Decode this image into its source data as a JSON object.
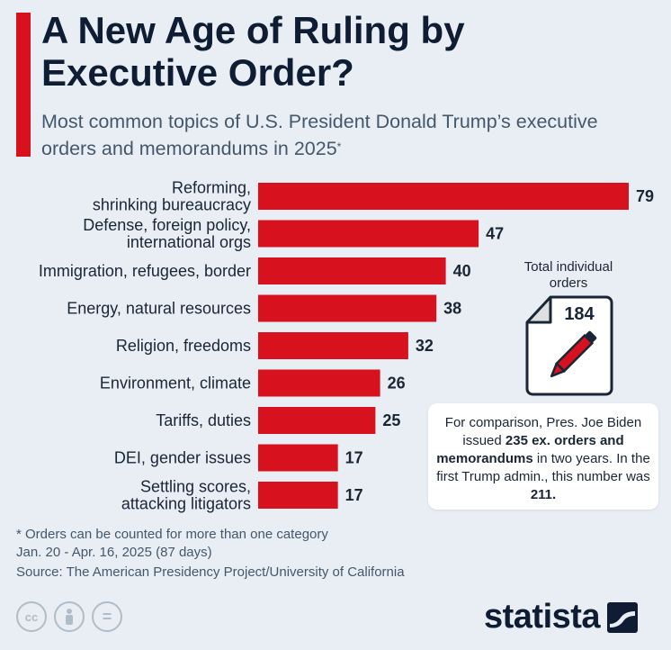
{
  "header": {
    "title": "A New Age of Ruling by Executive Order?",
    "subtitle": "Most common topics of U.S. President Donald Trump’s executive orders and memorandums in 2025",
    "subtitle_marker": "*"
  },
  "chart_data": {
    "type": "bar",
    "orientation": "horizontal",
    "categories": [
      [
        "Reforming,",
        "shrinking bureaucracy"
      ],
      [
        "Defense, foreign policy,",
        "international orgs"
      ],
      [
        "Immigration, refugees, border"
      ],
      [
        "Energy, natural resources"
      ],
      [
        "Religion, freedoms"
      ],
      [
        "Environment, climate"
      ],
      [
        "Tariffs, duties"
      ],
      [
        "DEI, gender issues"
      ],
      [
        "Settling scores,",
        "attacking litigators"
      ]
    ],
    "values": [
      79,
      47,
      40,
      38,
      32,
      26,
      25,
      17,
      17
    ],
    "xlim": [
      0,
      79
    ],
    "bar_color": "#d7111e",
    "grid": false,
    "value_labels": true
  },
  "callout": {
    "total_label": "Total individual orders",
    "total_value": "184",
    "comparison": {
      "part1": "For comparison, Pres. Joe Biden issued ",
      "bold1": "235 ex. orders and memorandums",
      "part2": " in two years. In the first Trump admin., this number was ",
      "bold2": "211.",
      "part3": ""
    }
  },
  "footer": {
    "note1": "* Orders can be counted for more than one category",
    "note2": "Jan. 20 - Apr. 16, 2025 (87 days)",
    "source": "Source: The American Presidency Project/University of California",
    "license_icons": [
      "cc-icon",
      "attribution-icon",
      "no-derivatives-icon"
    ],
    "cc_text": "cc",
    "nd_text": "=",
    "brand": "statista"
  },
  "colors": {
    "accent": "#d7111e",
    "background": "#e8eef3",
    "title": "#0e1d33"
  }
}
